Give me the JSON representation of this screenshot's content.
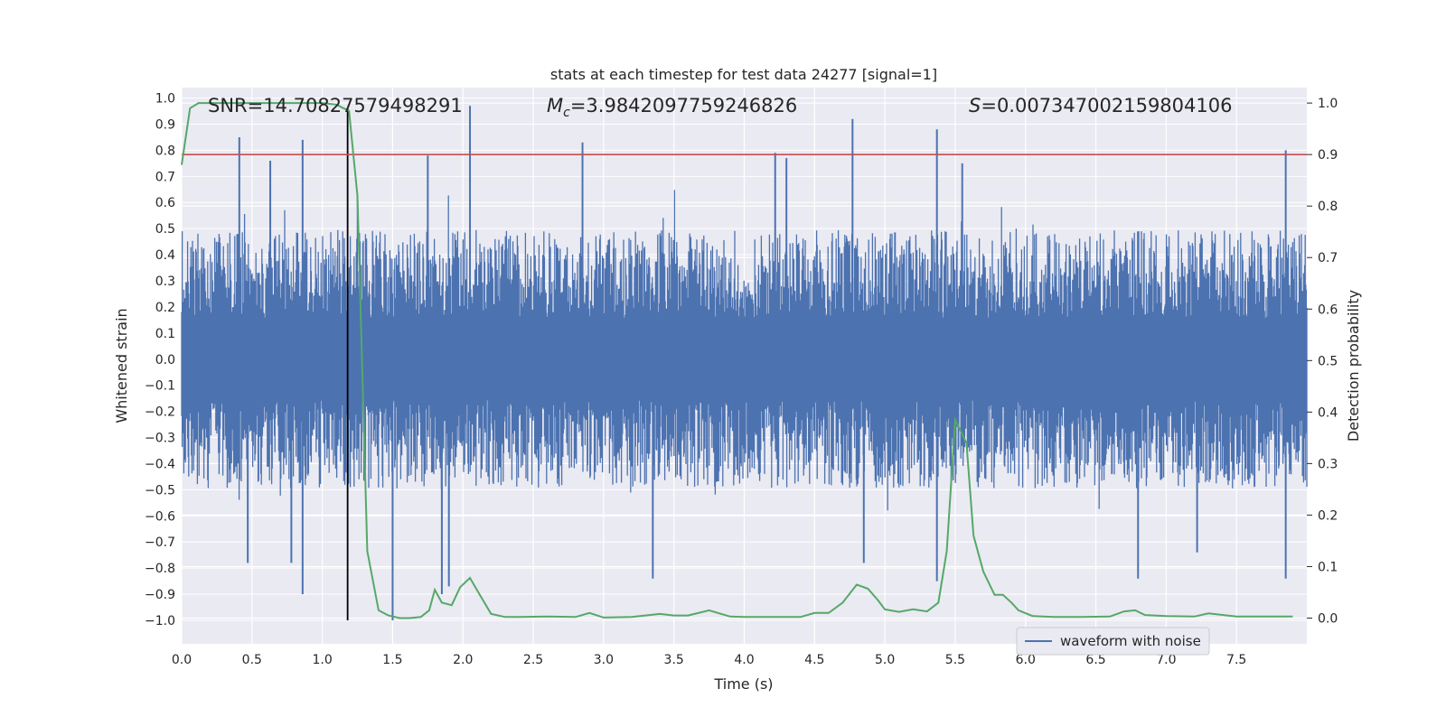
{
  "chart_data": {
    "type": "line",
    "title": "stats at each timestep for test data 24277 [signal=1]",
    "xlabel": "Time (s)",
    "ylabel_left": "Whitened strain",
    "ylabel_right": "Detection probability",
    "xlim": [
      0.0,
      8.0
    ],
    "ylim_left": [
      -1.09,
      1.04
    ],
    "ylim_right": [
      -0.05,
      1.03
    ],
    "x_ticks": [
      "0.0",
      "0.5",
      "1.0",
      "1.5",
      "2.0",
      "2.5",
      "3.0",
      "3.5",
      "4.0",
      "4.5",
      "5.0",
      "5.5",
      "6.0",
      "6.5",
      "7.0",
      "7.5"
    ],
    "y_left_ticks": [
      "1.0",
      "0.9",
      "0.8",
      "0.7",
      "0.6",
      "0.5",
      "0.4",
      "0.3",
      "0.2",
      "0.1",
      "0.0",
      "-0.1",
      "-0.2",
      "-0.3",
      "-0.4",
      "-0.5",
      "-0.6",
      "-0.7",
      "-0.8",
      "-0.9",
      "-1.0"
    ],
    "y_right_ticks": [
      "1.0",
      "0.9",
      "0.8",
      "0.7",
      "0.6",
      "0.5",
      "0.4",
      "0.3",
      "0.2",
      "0.1",
      "0.0"
    ],
    "annotations": {
      "snr": "SNR=14.70827579498291",
      "mc_symbol": "M",
      "mc_sub": "c",
      "mc_value": "=3.9842097759246826",
      "s_symbol": "S",
      "s_value": "=0.007347002159804106"
    },
    "legend": {
      "label": "waveform with noise",
      "location": "lower-right"
    },
    "threshold_line": {
      "axis": "right",
      "y": 0.9,
      "color": "#c44e52"
    },
    "event_marker": {
      "x": 1.18,
      "color": "#000000"
    },
    "series": [
      {
        "name": "waveform with noise",
        "axis": "left",
        "color": "#4c72b0",
        "x_range": [
          0.0,
          8.0
        ],
        "typical_envelope": [
          -0.45,
          0.45
        ],
        "peaks": [
          {
            "x": 0.41,
            "y": 0.85
          },
          {
            "x": 0.63,
            "y": 0.76
          },
          {
            "x": 0.86,
            "y": 0.84
          },
          {
            "x": 2.05,
            "y": 0.97
          },
          {
            "x": 1.75,
            "y": 0.78
          },
          {
            "x": 2.85,
            "y": 0.83
          },
          {
            "x": 4.22,
            "y": 0.79
          },
          {
            "x": 4.3,
            "y": 0.77
          },
          {
            "x": 4.77,
            "y": 0.92
          },
          {
            "x": 5.37,
            "y": 0.88
          },
          {
            "x": 5.55,
            "y": 0.75
          },
          {
            "x": 7.85,
            "y": 0.8
          }
        ],
        "troughs": [
          {
            "x": 0.86,
            "y": -0.9
          },
          {
            "x": 0.47,
            "y": -0.78
          },
          {
            "x": 0.78,
            "y": -0.78
          },
          {
            "x": 1.5,
            "y": -1.0
          },
          {
            "x": 1.85,
            "y": -0.9
          },
          {
            "x": 1.9,
            "y": -0.87
          },
          {
            "x": 3.35,
            "y": -0.84
          },
          {
            "x": 4.85,
            "y": -0.78
          },
          {
            "x": 5.37,
            "y": -0.85
          },
          {
            "x": 6.8,
            "y": -0.84
          },
          {
            "x": 7.85,
            "y": -0.84
          },
          {
            "x": 7.22,
            "y": -0.74
          }
        ]
      },
      {
        "name": "",
        "axis": "right",
        "color": "#55a868",
        "x": [
          0.0,
          0.06,
          0.12,
          0.2,
          0.4,
          0.6,
          0.8,
          1.0,
          1.1,
          1.15,
          1.19,
          1.25,
          1.32,
          1.4,
          1.47,
          1.55,
          1.62,
          1.7,
          1.76,
          1.8,
          1.85,
          1.92,
          1.98,
          2.05,
          2.12,
          2.2,
          2.3,
          2.4,
          2.6,
          2.8,
          2.9,
          3.0,
          3.2,
          3.4,
          3.5,
          3.6,
          3.75,
          3.9,
          4.0,
          4.2,
          4.4,
          4.5,
          4.6,
          4.7,
          4.8,
          4.88,
          4.95,
          5.0,
          5.1,
          5.2,
          5.3,
          5.38,
          5.44,
          5.5,
          5.58,
          5.63,
          5.7,
          5.78,
          5.84,
          5.9,
          5.95,
          6.05,
          6.2,
          6.4,
          6.6,
          6.7,
          6.78,
          6.85,
          7.0,
          7.2,
          7.3,
          7.5,
          7.7,
          7.9
        ],
        "y": [
          0.88,
          0.99,
          1.0,
          1.0,
          1.0,
          1.0,
          1.0,
          1.0,
          0.997,
          0.99,
          0.985,
          0.82,
          0.13,
          0.015,
          0.005,
          0.0,
          0.0,
          0.002,
          0.015,
          0.055,
          0.03,
          0.025,
          0.06,
          0.078,
          0.045,
          0.008,
          0.002,
          0.002,
          0.003,
          0.002,
          0.01,
          0.001,
          0.002,
          0.008,
          0.005,
          0.005,
          0.015,
          0.003,
          0.002,
          0.002,
          0.002,
          0.01,
          0.01,
          0.03,
          0.065,
          0.057,
          0.035,
          0.017,
          0.012,
          0.017,
          0.013,
          0.03,
          0.13,
          0.385,
          0.34,
          0.16,
          0.09,
          0.045,
          0.045,
          0.03,
          0.015,
          0.004,
          0.002,
          0.002,
          0.003,
          0.013,
          0.015,
          0.006,
          0.004,
          0.003,
          0.009,
          0.003,
          0.003,
          0.003
        ]
      }
    ]
  }
}
